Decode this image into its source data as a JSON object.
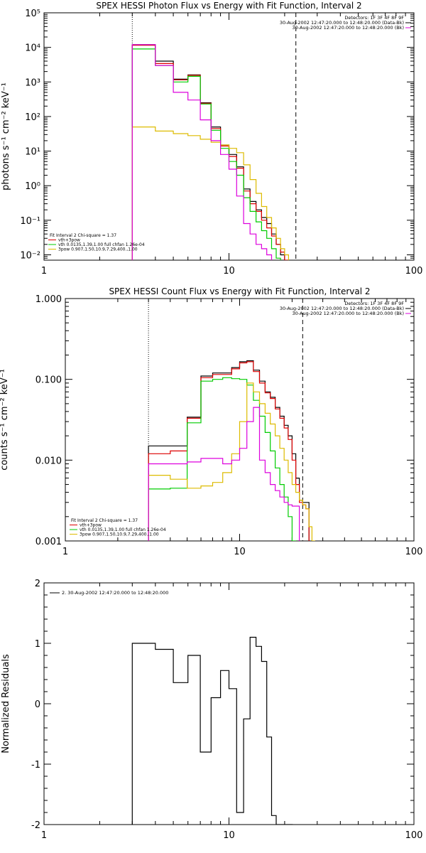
{
  "panels": [
    {
      "id": "photon",
      "title": "SPEX HESSI Photon Flux vs Energy with Fit Function, Interval 2",
      "ylabel": "photons s⁻¹ cm⁻² keV⁻¹",
      "header_lines": [
        "Detectors: 1F 3F 4F 8F 9F",
        "30-Aug-2002 12:47:20.000 to 12:48:20.000 (Data-Bk)",
        "30-Aug-2002 12:47:20.000 to 12:48:20.000 (Bk)"
      ],
      "legend_lines": [
        "Fit Interval 2   Chi-square = 1.37",
        "vth+3pow",
        "vth 0.0135,1.39,1.00  full chfan 1.26e-04",
        "3pow 0.907,1.50,10.9,7.29,400.,1.00"
      ]
    },
    {
      "id": "count",
      "title": "SPEX HESSI Count Flux vs Energy with Fit Function, Interval 2",
      "ylabel": "counts s⁻¹ cm⁻² keV⁻¹",
      "header_lines": [
        "Detectors: 1F 3F 4F 8F 9F",
        "30-Aug-2002 12:47:20.000 to 12:48:20.000 (Data-Bk)",
        "30-Aug-2002 12:47:20.000 to 12:48:20.000 (Bk)"
      ],
      "legend_lines": [
        "Fit Interval 2   Chi-square = 1.37",
        "vth+3pow",
        "vth 0.0135,1.39,1.00  full chfan 1.26e-04",
        "3pow 0.907,1.50,10.9,7.29,400.,1.00"
      ]
    },
    {
      "id": "residuals",
      "title": "",
      "ylabel": "Normalized Residuals",
      "header_lines": [],
      "legend_lines": [
        "2. 30-Aug-2002 12:47:20.000 to 12:48:20.000"
      ]
    }
  ],
  "chart_data": [
    {
      "type": "line",
      "title": "SPEX HESSI Photon Flux vs Energy with Fit Function, Interval 2",
      "xlabel": "",
      "ylabel": "photons s⁻¹ cm⁻² keV⁻¹",
      "xscale": "log",
      "yscale": "log",
      "xlim": [
        1,
        100
      ],
      "ylim": [
        0.007,
        100000
      ],
      "xticks": [
        1,
        10,
        100
      ],
      "xtick_labels": [
        "1",
        "10",
        "100"
      ],
      "yticks": [
        0.01,
        0.1,
        1,
        10,
        100,
        1000,
        10000,
        100000
      ],
      "ytick_labels": [
        "10⁻²",
        "10⁻¹",
        "10⁰",
        "10¹",
        "10²",
        "10³",
        "10⁴",
        "10⁵"
      ],
      "vlines": [
        {
          "x": 3,
          "style": "dotted"
        },
        {
          "x": 23,
          "style": "dashed"
        }
      ],
      "bin_edges": [
        3,
        4,
        5,
        6,
        7,
        8,
        9,
        10,
        11,
        12,
        13,
        14,
        15,
        16,
        17,
        18,
        19,
        20,
        21,
        22,
        23,
        24,
        25,
        26,
        27
      ],
      "series": [
        {
          "name": "Data-Bk",
          "color": "#000000",
          "values": [
            12000,
            4000,
            1200,
            1600,
            250,
            50,
            15,
            8,
            3.5,
            0.8,
            0.35,
            0.2,
            0.12,
            0.08,
            0.04,
            0.02,
            0.01,
            null,
            null,
            null,
            null,
            null,
            null,
            null
          ]
        },
        {
          "name": "vth+3pow",
          "color": "#dd0000",
          "values": [
            11500,
            3400,
            1150,
            1550,
            240,
            45,
            14,
            7,
            3.2,
            0.7,
            0.3,
            0.18,
            0.1,
            0.06,
            0.035,
            0.02,
            0.012,
            0.007,
            null,
            null,
            null,
            null,
            null,
            null
          ]
        },
        {
          "name": "vth 0.0135,1.39,1.00  full chfan 1.26e-04",
          "color": "#00cc00",
          "values": [
            9000,
            3000,
            1000,
            1450,
            230,
            40,
            12,
            5,
            2,
            0.45,
            0.18,
            0.09,
            0.05,
            0.03,
            0.015,
            0.008,
            null,
            null,
            null,
            null,
            null,
            null,
            null,
            null
          ]
        },
        {
          "name": "3pow 0.907,1.50,10.9,7.29,400.,1.00",
          "color": "#ddbb00",
          "values": [
            50,
            38,
            32,
            28,
            22,
            18,
            15,
            12,
            9,
            4,
            1.5,
            0.6,
            0.25,
            0.12,
            0.06,
            0.03,
            0.015,
            0.01,
            null,
            null,
            null,
            null,
            null,
            null
          ]
        },
        {
          "name": "Bk",
          "color": "#dd00dd",
          "values": [
            12000,
            3000,
            500,
            300,
            80,
            20,
            8,
            3,
            0.5,
            0.08,
            0.04,
            0.02,
            0.015,
            0.01,
            null,
            null,
            null,
            null,
            null,
            null,
            null,
            null,
            null,
            null
          ]
        }
      ]
    },
    {
      "type": "line",
      "title": "SPEX HESSI Count Flux vs Energy with Fit Function, Interval 2",
      "xlabel": "",
      "ylabel": "counts s⁻¹ cm⁻² keV⁻¹",
      "xscale": "log",
      "yscale": "log",
      "xlim": [
        1,
        100
      ],
      "ylim": [
        0.001,
        1.0
      ],
      "xticks": [
        1,
        10,
        100
      ],
      "xtick_labels": [
        "1",
        "10",
        "100"
      ],
      "yticks": [
        0.001,
        0.01,
        0.1,
        1
      ],
      "ytick_labels": [
        "0.001",
        "0.010",
        "0.100",
        "1.000"
      ],
      "vlines": [
        {
          "x": 3,
          "style": "dotted"
        },
        {
          "x": 23,
          "style": "dashed"
        }
      ],
      "bin_edges": [
        3,
        4,
        5,
        6,
        7,
        8,
        9,
        10,
        11,
        12,
        13,
        14,
        15,
        16,
        17,
        18,
        19,
        20,
        21,
        22,
        23,
        24,
        25,
        26,
        27
      ],
      "series": [
        {
          "name": "Data-Bk",
          "color": "#000000",
          "values": [
            0.015,
            0.015,
            0.034,
            0.11,
            0.12,
            0.12,
            0.14,
            0.165,
            0.17,
            0.13,
            0.095,
            0.07,
            0.06,
            0.045,
            0.035,
            0.027,
            0.02,
            0.012,
            0.006,
            0.0032,
            0.003,
            0.003,
            null,
            null
          ]
        },
        {
          "name": "vth+3pow",
          "color": "#dd0000",
          "values": [
            0.012,
            0.013,
            0.033,
            0.105,
            0.115,
            0.115,
            0.135,
            0.16,
            0.165,
            0.125,
            0.09,
            0.068,
            0.058,
            0.043,
            0.033,
            0.025,
            0.018,
            0.01,
            0.005,
            0.003,
            0.0028,
            0.0025,
            null,
            null
          ]
        },
        {
          "name": "vth 0.0135,1.39,1.00  full chfan 1.26e-04",
          "color": "#00cc00",
          "values": [
            0.0044,
            0.0045,
            0.029,
            0.095,
            0.1,
            0.105,
            0.102,
            0.1,
            0.085,
            0.055,
            0.035,
            0.022,
            0.013,
            0.008,
            0.005,
            0.0035,
            0.002,
            0.001,
            null,
            null,
            null,
            null,
            null,
            null
          ]
        },
        {
          "name": "3pow 0.907,1.50,10.9,7.29,400.,1.00",
          "color": "#ddbb00",
          "values": [
            0.0065,
            0.0058,
            0.0045,
            0.0048,
            0.0053,
            0.007,
            0.012,
            0.03,
            0.09,
            0.07,
            0.05,
            0.038,
            0.028,
            0.02,
            0.014,
            0.01,
            0.007,
            0.005,
            0.004,
            0.0032,
            0.0028,
            0.0025,
            0.0015,
            0.001
          ]
        },
        {
          "name": "Bk",
          "color": "#dd00dd",
          "values": [
            0.009,
            0.009,
            0.0095,
            0.0105,
            0.0105,
            0.009,
            0.01,
            0.014,
            0.03,
            0.045,
            0.01,
            0.007,
            0.005,
            0.0042,
            0.0035,
            0.003,
            0.0028,
            0.0027,
            0.0027,
            null,
            null,
            null,
            null,
            null
          ]
        }
      ]
    },
    {
      "type": "line",
      "title": "",
      "xlabel": "",
      "ylabel": "Normalized Residuals",
      "xscale": "log",
      "yscale": "linear",
      "xlim": [
        1,
        100
      ],
      "ylim": [
        -2,
        2
      ],
      "xticks": [
        1,
        10,
        100
      ],
      "xtick_labels": [
        "1",
        "10",
        "100"
      ],
      "yticks": [
        -2,
        -1,
        0,
        1,
        2
      ],
      "ytick_labels": [
        "-2",
        "-1",
        "0",
        "1",
        "2"
      ],
      "bin_edges": [
        3,
        4,
        5,
        6,
        7,
        8,
        9,
        10,
        11,
        12,
        13,
        14,
        15,
        16,
        17,
        18,
        19,
        20,
        21,
        22
      ],
      "series": [
        {
          "name": "2. 30-Aug-2002 12:47:20.000 to 12:48:20.000",
          "color": "#000000",
          "values": [
            1.0,
            0.9,
            0.35,
            0.8,
            -0.8,
            0.1,
            0.55,
            0.25,
            -1.8,
            -0.25,
            1.1,
            0.95,
            0.7,
            -0.55,
            -1.85,
            -2.0,
            -2.0,
            -2.0,
            -2.0
          ]
        }
      ]
    }
  ]
}
